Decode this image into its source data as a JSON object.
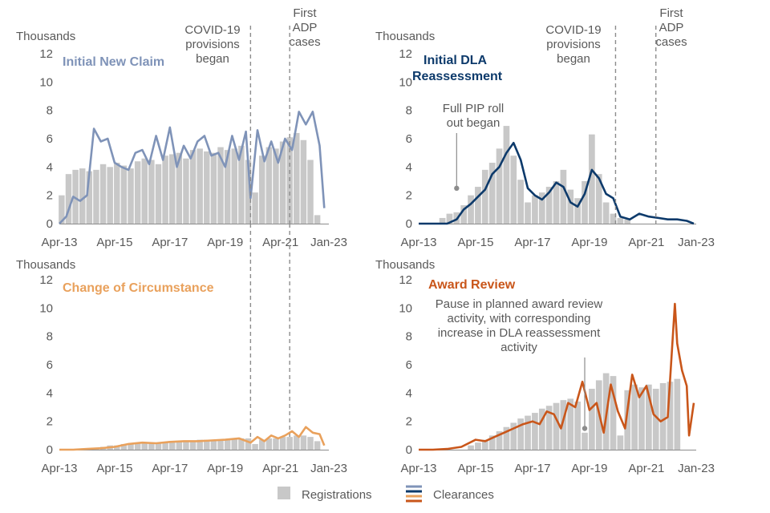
{
  "legend": {
    "registrations": "Registrations",
    "clearances": "Clearances",
    "registrations_color": "#c8c8c8",
    "clearance_colors": [
      "#7f93b8",
      "#0d3a6b",
      "#e9a15c",
      "#c9561a"
    ]
  },
  "chart_data": [
    {
      "type": "bar",
      "title": "Initial New Claim",
      "title_color": "#7f93b8",
      "ylabel": "Thousands",
      "ylim": [
        0,
        12
      ],
      "yticks": [
        "0",
        "2",
        "4",
        "6",
        "8",
        "10",
        "12"
      ],
      "xtick_labels": [
        "Apr-13",
        "Apr-15",
        "Apr-17",
        "Apr-19",
        "Apr-21",
        "Jan-23"
      ],
      "xlim": [
        "2013-04",
        "2023-01"
      ],
      "line_color": "#7f93b8",
      "annotations": [
        {
          "label": "COVID-19 provisions began",
          "lines": [
            "COVID-19",
            "provisions",
            "began"
          ],
          "x": "2020-03"
        },
        {
          "label": "First ADP cases",
          "lines": [
            "First",
            "ADP",
            "cases"
          ],
          "x": "2021-08"
        }
      ],
      "series": [
        {
          "name": "Registrations",
          "x": [
            "2013-05",
            "2013-08",
            "2013-11",
            "2014-02",
            "2014-05",
            "2014-08",
            "2014-11",
            "2015-02",
            "2015-05",
            "2015-08",
            "2015-11",
            "2016-02",
            "2016-05",
            "2016-08",
            "2016-11",
            "2017-02",
            "2017-05",
            "2017-08",
            "2017-11",
            "2018-02",
            "2018-05",
            "2018-08",
            "2018-11",
            "2019-02",
            "2019-05",
            "2019-08",
            "2019-11",
            "2020-02",
            "2020-05",
            "2020-08",
            "2020-11",
            "2021-02",
            "2021-05",
            "2021-08",
            "2021-11",
            "2022-02",
            "2022-05",
            "2022-08"
          ],
          "values": [
            2.0,
            3.5,
            3.8,
            3.9,
            3.7,
            3.8,
            4.2,
            4.0,
            4.3,
            4.1,
            3.9,
            4.4,
            4.6,
            4.5,
            4.2,
            4.8,
            4.9,
            5.0,
            4.6,
            5.2,
            5.3,
            5.1,
            5.0,
            5.4,
            5.2,
            5.3,
            5.5,
            4.5,
            2.2,
            4.8,
            5.4,
            5.3,
            5.8,
            6.1,
            6.4,
            5.9,
            4.5,
            0.6
          ]
        },
        {
          "name": "Clearances",
          "x": [
            "2013-04",
            "2013-07",
            "2013-10",
            "2014-01",
            "2014-04",
            "2014-07",
            "2014-10",
            "2015-01",
            "2015-04",
            "2015-07",
            "2015-10",
            "2016-01",
            "2016-04",
            "2016-07",
            "2016-10",
            "2017-01",
            "2017-04",
            "2017-07",
            "2017-10",
            "2018-01",
            "2018-04",
            "2018-07",
            "2018-10",
            "2019-01",
            "2019-04",
            "2019-07",
            "2019-10",
            "2020-01",
            "2020-03",
            "2020-06",
            "2020-09",
            "2020-12",
            "2021-03",
            "2021-06",
            "2021-09",
            "2021-12",
            "2022-03",
            "2022-06",
            "2022-09",
            "2022-11"
          ],
          "values": [
            0.0,
            0.5,
            1.9,
            1.6,
            2.0,
            6.7,
            5.8,
            6.0,
            4.3,
            4.0,
            3.8,
            5.0,
            5.2,
            4.2,
            6.2,
            4.5,
            6.8,
            4.0,
            5.5,
            4.6,
            5.8,
            6.2,
            4.8,
            5.0,
            4.0,
            6.2,
            4.5,
            6.5,
            1.8,
            6.6,
            4.4,
            5.8,
            4.3,
            6.0,
            5.2,
            7.9,
            7.0,
            7.9,
            5.5,
            1.1
          ]
        }
      ]
    },
    {
      "type": "bar",
      "title": "Initial DLA Reassessment",
      "title_lines": [
        "Initial DLA",
        "Reassessment"
      ],
      "title_color": "#0d3a6b",
      "ylabel": "Thousands",
      "ylim": [
        0,
        12
      ],
      "yticks": [
        "0",
        "2",
        "4",
        "6",
        "8",
        "10",
        "12"
      ],
      "xtick_labels": [
        "Apr-13",
        "Apr-15",
        "Apr-17",
        "Apr-19",
        "Jan-23"
      ],
      "xlim": [
        "2013-04",
        "2023-01"
      ],
      "line_color": "#0d3a6b",
      "annotations": [
        {
          "label": "COVID-19 provisions began",
          "lines": [
            "COVID-19",
            "provisions",
            "began"
          ],
          "x": "2020-03"
        },
        {
          "label": "First ADP cases",
          "lines": [
            "First",
            "ADP",
            "cases"
          ],
          "x": "2021-08"
        },
        {
          "label": "Full PIP roll out began",
          "lines": [
            "Full PIP roll",
            "out began"
          ],
          "x": "2014-08",
          "y": 2.5
        }
      ],
      "extra_tick_label": {
        "text": "Apr-21",
        "x": "2021-04"
      },
      "series": [
        {
          "name": "Registrations",
          "x": [
            "2014-02",
            "2014-05",
            "2014-08",
            "2014-11",
            "2015-02",
            "2015-05",
            "2015-08",
            "2015-11",
            "2016-02",
            "2016-05",
            "2016-08",
            "2016-11",
            "2017-02",
            "2017-05",
            "2017-08",
            "2017-11",
            "2018-02",
            "2018-05",
            "2018-08",
            "2018-11",
            "2019-02",
            "2019-05",
            "2019-08",
            "2019-11",
            "2020-02",
            "2020-05",
            "2020-08"
          ],
          "values": [
            0.4,
            0.7,
            0.8,
            1.3,
            2.0,
            2.6,
            3.8,
            4.3,
            5.3,
            6.9,
            4.8,
            3.1,
            1.5,
            2.0,
            2.2,
            2.6,
            3.0,
            3.8,
            2.4,
            1.8,
            3.0,
            6.3,
            3.5,
            1.5,
            0.7,
            0.4,
            0.3
          ]
        },
        {
          "name": "Clearances",
          "x": [
            "2013-04",
            "2013-10",
            "2014-04",
            "2014-08",
            "2014-11",
            "2015-02",
            "2015-05",
            "2015-08",
            "2015-11",
            "2016-02",
            "2016-05",
            "2016-08",
            "2016-11",
            "2017-02",
            "2017-05",
            "2017-08",
            "2017-11",
            "2018-02",
            "2018-05",
            "2018-08",
            "2018-11",
            "2019-02",
            "2019-05",
            "2019-08",
            "2019-11",
            "2020-02",
            "2020-05",
            "2020-09",
            "2021-01",
            "2021-05",
            "2021-09",
            "2022-01",
            "2022-05",
            "2022-09",
            "2022-12"
          ],
          "values": [
            0.0,
            0.0,
            0.0,
            0.3,
            1.0,
            1.4,
            1.9,
            2.4,
            3.5,
            4.0,
            5.0,
            5.7,
            4.5,
            2.5,
            2.0,
            1.7,
            2.2,
            2.9,
            2.6,
            1.5,
            1.2,
            2.1,
            3.8,
            3.2,
            2.1,
            1.8,
            0.5,
            0.3,
            0.7,
            0.5,
            0.4,
            0.3,
            0.3,
            0.2,
            0.0
          ]
        }
      ]
    },
    {
      "type": "bar",
      "title": "Change of Circumstance",
      "title_color": "#e9a15c",
      "ylabel": "Thousands",
      "ylim": [
        0,
        12
      ],
      "yticks": [
        "0",
        "2",
        "4",
        "6",
        "8",
        "10",
        "12"
      ],
      "xtick_labels": [
        "Apr-13",
        "Apr-15",
        "Apr-17",
        "Apr-19",
        "Apr-21",
        "Jan-23"
      ],
      "xlim": [
        "2013-04",
        "2023-01"
      ],
      "line_color": "#e9a15c",
      "annotations": [],
      "series": [
        {
          "name": "Registrations",
          "x": [
            "2014-08",
            "2014-11",
            "2015-02",
            "2015-05",
            "2015-08",
            "2015-11",
            "2016-02",
            "2016-05",
            "2016-08",
            "2016-11",
            "2017-02",
            "2017-05",
            "2017-08",
            "2017-11",
            "2018-02",
            "2018-05",
            "2018-08",
            "2018-11",
            "2019-02",
            "2019-05",
            "2019-08",
            "2019-11",
            "2020-02",
            "2020-05",
            "2020-08",
            "2020-11",
            "2021-02",
            "2021-05",
            "2021-08",
            "2021-11",
            "2022-02",
            "2022-05",
            "2022-08"
          ],
          "values": [
            0.1,
            0.2,
            0.3,
            0.3,
            0.4,
            0.4,
            0.5,
            0.5,
            0.5,
            0.5,
            0.5,
            0.6,
            0.6,
            0.6,
            0.6,
            0.7,
            0.7,
            0.7,
            0.7,
            0.7,
            0.8,
            0.8,
            0.8,
            0.4,
            0.7,
            0.8,
            0.8,
            0.9,
            0.9,
            1.0,
            1.0,
            0.9,
            0.6
          ]
        },
        {
          "name": "Clearances",
          "x": [
            "2013-04",
            "2013-10",
            "2014-04",
            "2014-10",
            "2015-04",
            "2015-10",
            "2016-04",
            "2016-10",
            "2017-04",
            "2017-10",
            "2018-04",
            "2018-10",
            "2019-04",
            "2019-10",
            "2020-03",
            "2020-06",
            "2020-09",
            "2020-12",
            "2021-03",
            "2021-06",
            "2021-09",
            "2021-12",
            "2022-03",
            "2022-06",
            "2022-09",
            "2022-11"
          ],
          "values": [
            0.0,
            0.0,
            0.05,
            0.1,
            0.2,
            0.4,
            0.5,
            0.45,
            0.55,
            0.6,
            0.6,
            0.65,
            0.7,
            0.8,
            0.5,
            0.9,
            0.6,
            1.0,
            0.8,
            1.0,
            1.3,
            0.9,
            1.6,
            1.2,
            1.1,
            0.3
          ]
        }
      ]
    },
    {
      "type": "bar",
      "title": "Award Review",
      "title_color": "#c9561a",
      "ylabel": "Thousands",
      "ylim": [
        0,
        12
      ],
      "yticks": [
        "0",
        "2",
        "4",
        "6",
        "8",
        "10",
        "12"
      ],
      "xtick_labels": [
        "Apr-13",
        "Apr-15",
        "Apr-17",
        "Apr-19",
        "Apr-21",
        "Jan-23"
      ],
      "xlim": [
        "2013-04",
        "2023-01"
      ],
      "line_color": "#c9561a",
      "annotations": [
        {
          "label": "Pause in planned award review activity, with corresponding increase in DLA reassessment activity",
          "lines": [
            "Pause in planned award review",
            "activity, with corresponding",
            "increase in DLA reassessment",
            "activity"
          ],
          "x": "2019-02",
          "y": 1.5
        }
      ],
      "series": [
        {
          "name": "Registrations",
          "x": [
            "2015-02",
            "2015-05",
            "2015-08",
            "2015-11",
            "2016-02",
            "2016-05",
            "2016-08",
            "2016-11",
            "2017-02",
            "2017-05",
            "2017-08",
            "2017-11",
            "2018-02",
            "2018-05",
            "2018-08",
            "2018-11",
            "2019-02",
            "2019-05",
            "2019-08",
            "2019-11",
            "2020-02",
            "2020-05",
            "2020-08",
            "2020-11",
            "2021-02",
            "2021-05",
            "2021-08",
            "2021-11",
            "2022-02",
            "2022-05"
          ],
          "values": [
            0.3,
            0.5,
            0.7,
            1.0,
            1.3,
            1.6,
            1.9,
            2.2,
            2.4,
            2.6,
            2.9,
            3.1,
            3.3,
            3.5,
            3.6,
            3.4,
            1.2,
            4.3,
            4.9,
            5.4,
            5.2,
            1.0,
            4.2,
            4.6,
            4.4,
            4.6,
            4.3,
            4.7,
            4.8,
            5.0
          ]
        },
        {
          "name": "Clearances",
          "x": [
            "2013-04",
            "2013-10",
            "2014-04",
            "2014-10",
            "2015-04",
            "2015-08",
            "2015-12",
            "2016-04",
            "2016-08",
            "2016-12",
            "2017-04",
            "2017-07",
            "2017-10",
            "2018-01",
            "2018-04",
            "2018-07",
            "2018-10",
            "2019-01",
            "2019-04",
            "2019-07",
            "2019-10",
            "2020-01",
            "2020-04",
            "2020-07",
            "2020-10",
            "2021-01",
            "2021-04",
            "2021-07",
            "2021-10",
            "2022-01",
            "2022-04",
            "2022-05",
            "2022-07",
            "2022-09",
            "2022-10",
            "2022-12"
          ],
          "values": [
            0.0,
            0.0,
            0.05,
            0.2,
            0.7,
            0.6,
            0.9,
            1.2,
            1.5,
            1.8,
            2.0,
            1.8,
            2.7,
            2.5,
            1.5,
            3.3,
            3.0,
            4.8,
            2.8,
            3.3,
            1.2,
            4.6,
            2.7,
            1.5,
            5.3,
            3.7,
            4.5,
            2.5,
            2.0,
            2.3,
            10.3,
            7.5,
            5.6,
            4.5,
            1.0,
            3.3
          ]
        }
      ]
    }
  ]
}
